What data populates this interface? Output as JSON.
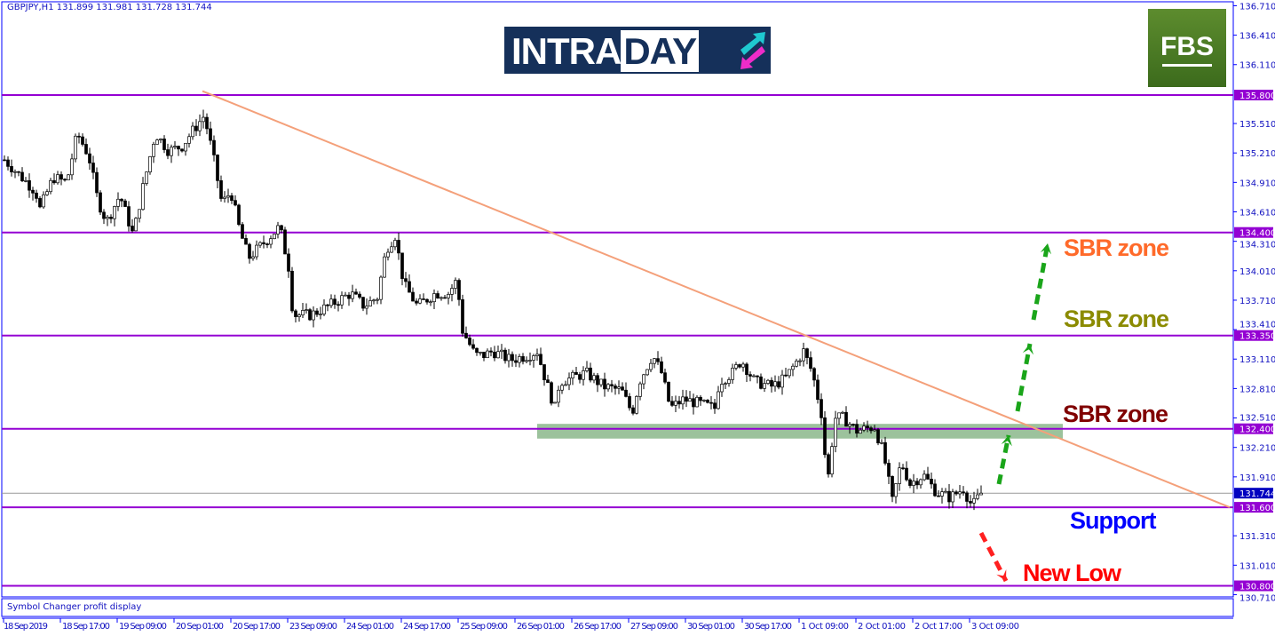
{
  "header": {
    "symbol_info": "GBPJPY,H1  131.899 131.981 131.728 131.744"
  },
  "indicator": {
    "label": "Symbol Changer profit display"
  },
  "logos": {
    "intraday": "INTRADAY",
    "fbs": "FBS"
  },
  "annotations": [
    {
      "text": "SBR zone",
      "color": "#ff6a2a"
    },
    {
      "text": "SBR zone",
      "color": "#8b8b00"
    },
    {
      "text": "SBR zone",
      "color": "#800000"
    },
    {
      "text": "Support",
      "color": "#0000ff"
    },
    {
      "text": "New Low",
      "color": "#ff0000"
    }
  ],
  "colors": {
    "level_line": "#9400d3",
    "trendline": "#f4a07a",
    "zone": "#5a9a5a",
    "axis": "#0000ff",
    "bull_arrow": "#1aa51a",
    "bear_arrow": "#ff2020"
  },
  "chart_data": {
    "type": "candlestick",
    "symbol": "GBPJPY",
    "timeframe": "H1",
    "ylim": [
      130.71,
      136.71
    ],
    "y_ticks": [
      "136.710",
      "136.410",
      "136.110",
      "135.510",
      "135.210",
      "134.910",
      "134.610",
      "134.310",
      "134.010",
      "133.710",
      "133.410",
      "133.110",
      "132.810",
      "132.510",
      "132.210",
      "131.910",
      "131.310",
      "131.010",
      "130.710"
    ],
    "x_ticks": [
      "18 Sep 2019",
      "18 Sep 17:00",
      "19 Sep 09:00",
      "20 Sep 01:00",
      "20 Sep 17:00",
      "23 Sep 09:00",
      "24 Sep 01:00",
      "24 Sep 17:00",
      "25 Sep 09:00",
      "26 Sep 01:00",
      "26 Sep 17:00",
      "27 Sep 09:00",
      "30 Sep 01:00",
      "30 Sep 17:00",
      "1 Oct 09:00",
      "2 Oct 01:00",
      "2 Oct 17:00",
      "3 Oct 09:00"
    ],
    "levels": [
      "135.800",
      "134.400",
      "133.350",
      "132.400",
      "131.600",
      "130.800"
    ],
    "current_price": "131.744",
    "trendline": {
      "from": 135.84,
      "to": 131.6
    },
    "zone": {
      "low": 132.3,
      "high": 132.45
    },
    "closes": [
      135.14,
      134.82,
      134.64,
      134.96,
      134.91,
      135.41,
      135.18,
      134.73,
      134.51,
      134.78,
      134.37,
      134.82,
      135.41,
      135.23,
      135.28,
      135.41,
      135.59,
      135.18,
      134.69,
      134.82,
      134.42,
      134.14,
      134.32,
      134.46,
      134.05,
      133.56,
      133.56,
      133.65,
      133.78,
      133.65,
      133.74,
      134.23,
      134.37,
      133.87,
      133.65,
      133.78,
      133.78,
      133.92,
      133.42,
      133.15,
      133.15,
      133.19,
      133.1,
      133.15,
      133.19,
      132.88,
      132.61,
      132.88,
      132.92,
      132.97,
      132.83,
      132.79,
      132.56,
      132.88,
      133.15,
      132.97,
      132.61,
      132.7,
      132.65,
      132.61,
      132.88,
      132.97,
      133.1,
      132.88,
      132.83,
      132.92,
      133.19,
      132.97,
      132.56,
      131.84,
      132.51,
      132.51,
      132.38,
      132.42,
      132.15,
      131.66,
      132.06,
      131.84,
      131.93,
      131.75,
      131.7,
      131.79,
      131.61,
      131.744
    ]
  }
}
